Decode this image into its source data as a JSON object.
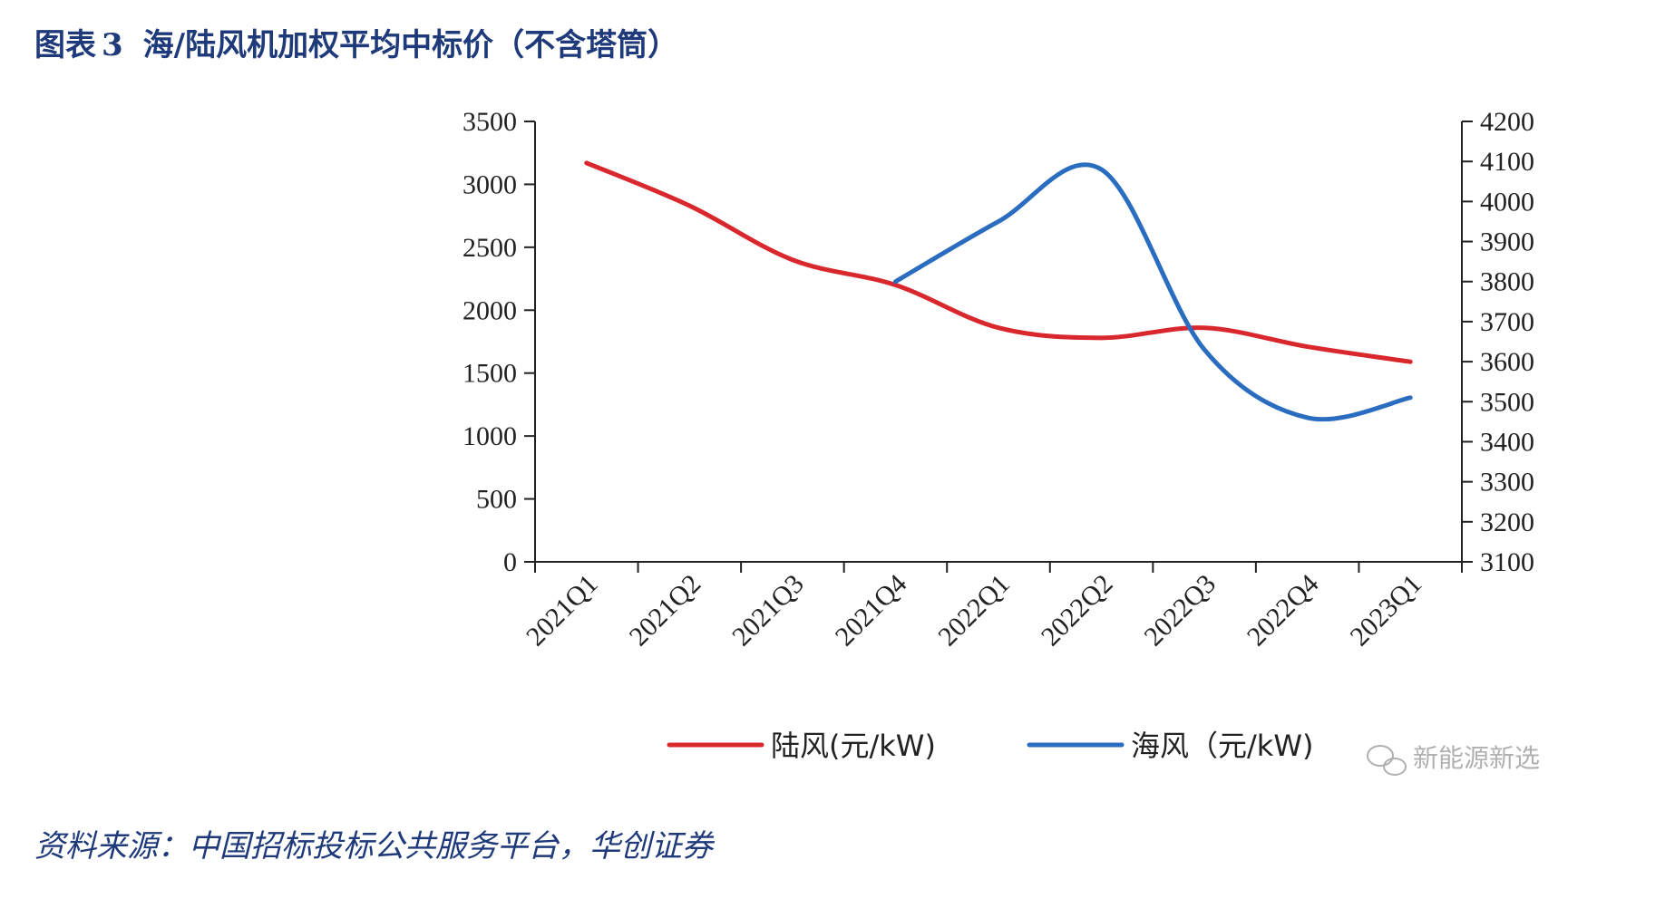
{
  "title": {
    "prefix": "图表",
    "number": "3",
    "text": "海/陆风机加权平均中标价（不含塔筒）"
  },
  "source": "资料来源：中国招标投标公共服务平台，华创证券",
  "watermark": "新能源新选",
  "colors": {
    "onshore": "#d9282d",
    "offshore": "#2a6dc0",
    "title": "#1f3a7a"
  },
  "chart_data": {
    "type": "line",
    "categories": [
      "2021Q1",
      "2021Q2",
      "2021Q3",
      "2021Q4",
      "2022Q1",
      "2022Q2",
      "2022Q3",
      "2022Q4",
      "2023Q1"
    ],
    "series": [
      {
        "name": "陆风(元/kW)",
        "axis": "left",
        "values": [
          3170,
          2830,
          2400,
          2200,
          1860,
          1780,
          1860,
          1710,
          1590
        ]
      },
      {
        "name": "海风（元/kW)",
        "axis": "right",
        "values": [
          null,
          null,
          null,
          3800,
          3950,
          4080,
          3630,
          3460,
          3510
        ]
      }
    ],
    "y_left": {
      "min": 0,
      "max": 3500,
      "ticks": [
        0,
        500,
        1000,
        1500,
        2000,
        2500,
        3000,
        3500
      ]
    },
    "y_right": {
      "min": 3100,
      "max": 4200,
      "ticks": [
        3100,
        3200,
        3300,
        3400,
        3500,
        3600,
        3700,
        3800,
        3900,
        4000,
        4100,
        4200
      ]
    },
    "legend": [
      {
        "label": "陆风(元/kW)"
      },
      {
        "label": "海风（元/kW)"
      }
    ]
  }
}
